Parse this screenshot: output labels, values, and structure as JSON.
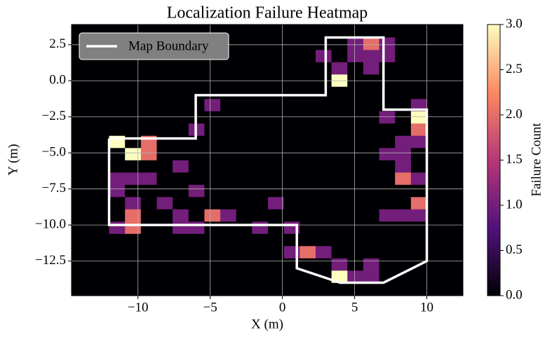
{
  "chart_data": {
    "type": "heatmap",
    "title": "Localization Failure Heatmap",
    "xlabel": "X (m)",
    "ylabel": "Y (m)",
    "x_bins": [
      -12,
      -10.9,
      -9.8,
      -8.7,
      -7.6,
      -6.5,
      -5.4,
      -4.3,
      -3.2,
      -2.1,
      -1,
      0.1,
      1.2,
      2.3,
      3.4,
      4.5,
      5.6,
      6.7,
      7.8,
      8.9,
      10
    ],
    "y_bins": [
      -14,
      -13.15,
      -12.3,
      -11.45,
      -10.6,
      -9.75,
      -8.9,
      -8.05,
      -7.2,
      -6.35,
      -5.5,
      -4.65,
      -3.8,
      -2.95,
      -2.1,
      -1.25,
      -0.4,
      0.45,
      1.3,
      2.15,
      3
    ],
    "values": [
      [
        0,
        0,
        0,
        0,
        0,
        0,
        0,
        0,
        0,
        0,
        0,
        0,
        0,
        0,
        3,
        1,
        1,
        0,
        0,
        0
      ],
      [
        0,
        0,
        0,
        0,
        0,
        0,
        0,
        0,
        0,
        0,
        0,
        0,
        0,
        0,
        1,
        0,
        1,
        0,
        0,
        0
      ],
      [
        0,
        0,
        0,
        0,
        0,
        0,
        0,
        0,
        0,
        0,
        0,
        1,
        2,
        1,
        0,
        0,
        0,
        0,
        0,
        0
      ],
      [
        0,
        0,
        0,
        0,
        0,
        0,
        0,
        0,
        0,
        0,
        0,
        0,
        0,
        0,
        0,
        0,
        0,
        0,
        0,
        0
      ],
      [
        1,
        2,
        0,
        0,
        1,
        1,
        0,
        0,
        0,
        1,
        0,
        1,
        0,
        0,
        0,
        0,
        0,
        0,
        0,
        0
      ],
      [
        0,
        2,
        0,
        0,
        1,
        0,
        2,
        1,
        0,
        0,
        0,
        0,
        0,
        0,
        0,
        0,
        0,
        1,
        1,
        1
      ],
      [
        0,
        1,
        0,
        1,
        0,
        0,
        0,
        0,
        0,
        0,
        1,
        0,
        0,
        0,
        0,
        0,
        0,
        0,
        0,
        2
      ],
      [
        1,
        0,
        0,
        0,
        0,
        1,
        0,
        0,
        0,
        0,
        0,
        0,
        0,
        0,
        0,
        0,
        0,
        0,
        0,
        0
      ],
      [
        1,
        1,
        1,
        0,
        0,
        0,
        0,
        0,
        0,
        0,
        0,
        0,
        0,
        0,
        0,
        0,
        0,
        0,
        2,
        1
      ],
      [
        0,
        0,
        0,
        0,
        1,
        0,
        0,
        0,
        0,
        0,
        0,
        0,
        0,
        0,
        0,
        0,
        0,
        0,
        1,
        0
      ],
      [
        0,
        3,
        2,
        0,
        0,
        0,
        0,
        0,
        0,
        0,
        0,
        0,
        0,
        0,
        0,
        0,
        0,
        1,
        1,
        0
      ],
      [
        3,
        0,
        2,
        0,
        0,
        0,
        0,
        0,
        0,
        0,
        0,
        0,
        0,
        0,
        0,
        0,
        0,
        0,
        1,
        1
      ],
      [
        0,
        0,
        0,
        0,
        0,
        1,
        0,
        0,
        0,
        0,
        0,
        0,
        0,
        0,
        0,
        0,
        0,
        0,
        0,
        2
      ],
      [
        0,
        0,
        0,
        0,
        0,
        0,
        0,
        0,
        0,
        0,
        0,
        0,
        0,
        0,
        0,
        0,
        0,
        1,
        0,
        3
      ],
      [
        0,
        0,
        0,
        0,
        0,
        0,
        1,
        0,
        0,
        0,
        0,
        0,
        0,
        0,
        0,
        0,
        0,
        0,
        0,
        1
      ],
      [
        0,
        0,
        0,
        0,
        0,
        0,
        0,
        0,
        0,
        0,
        0,
        0,
        0,
        0,
        0,
        0,
        0,
        0,
        0,
        0
      ],
      [
        0,
        0,
        0,
        0,
        0,
        0,
        0,
        0,
        0,
        0,
        0,
        0,
        0,
        0,
        3,
        0,
        0,
        0,
        0,
        0
      ],
      [
        0,
        0,
        0,
        0,
        0,
        0,
        0,
        0,
        0,
        0,
        0,
        0,
        0,
        0,
        1,
        0,
        1,
        0,
        0,
        0
      ],
      [
        0,
        0,
        0,
        0,
        0,
        0,
        0,
        0,
        0,
        0,
        0,
        0,
        0,
        1,
        0,
        1,
        1,
        1,
        0,
        0
      ],
      [
        0,
        0,
        0,
        0,
        0,
        0,
        0,
        0,
        0,
        0,
        0,
        0,
        0,
        0,
        0,
        1,
        2,
        1,
        0,
        0
      ]
    ],
    "colormap": "magma",
    "clim": [
      0,
      3
    ],
    "cticks": [
      {
        "value": 0,
        "label": "0.0"
      },
      0.5,
      {
        "value": 1,
        "label": "1.0"
      },
      1.5,
      {
        "value": 2,
        "label": "2.0"
      },
      2.5,
      {
        "value": 3,
        "label": "3.0"
      }
    ],
    "colorbar_label": "Failure Count",
    "xlim": [
      -14.6,
      12.5
    ],
    "ylim": [
      -14.9,
      3.9
    ],
    "xticks": [
      {
        "value": -10,
        "label": "−10"
      },
      {
        "value": -5,
        "label": "−5"
      },
      0,
      5,
      10
    ],
    "yticks": [
      {
        "value": -12.5,
        "label": "−12.5"
      },
      {
        "value": -10,
        "label": "−10.0"
      },
      {
        "value": -7.5,
        "label": "−7.5"
      },
      {
        "value": -5,
        "label": "−5.0"
      },
      {
        "value": -2.5,
        "label": "−2.5"
      },
      {
        "value": 0,
        "label": "0.0"
      },
      2.5
    ],
    "grid": true,
    "legend_loc": "upper left",
    "boundary": {
      "name": "Map Boundary",
      "color": "#ffffff",
      "x": [
        -12,
        -6,
        -6,
        3,
        3,
        7,
        7,
        10,
        10,
        7,
        4,
        1,
        1,
        -12,
        -12
      ],
      "y": [
        -4,
        -4,
        -1,
        -1,
        3,
        3,
        -2,
        -2,
        -12.5,
        -14,
        -14,
        -13,
        -10,
        -10,
        -4
      ]
    }
  }
}
